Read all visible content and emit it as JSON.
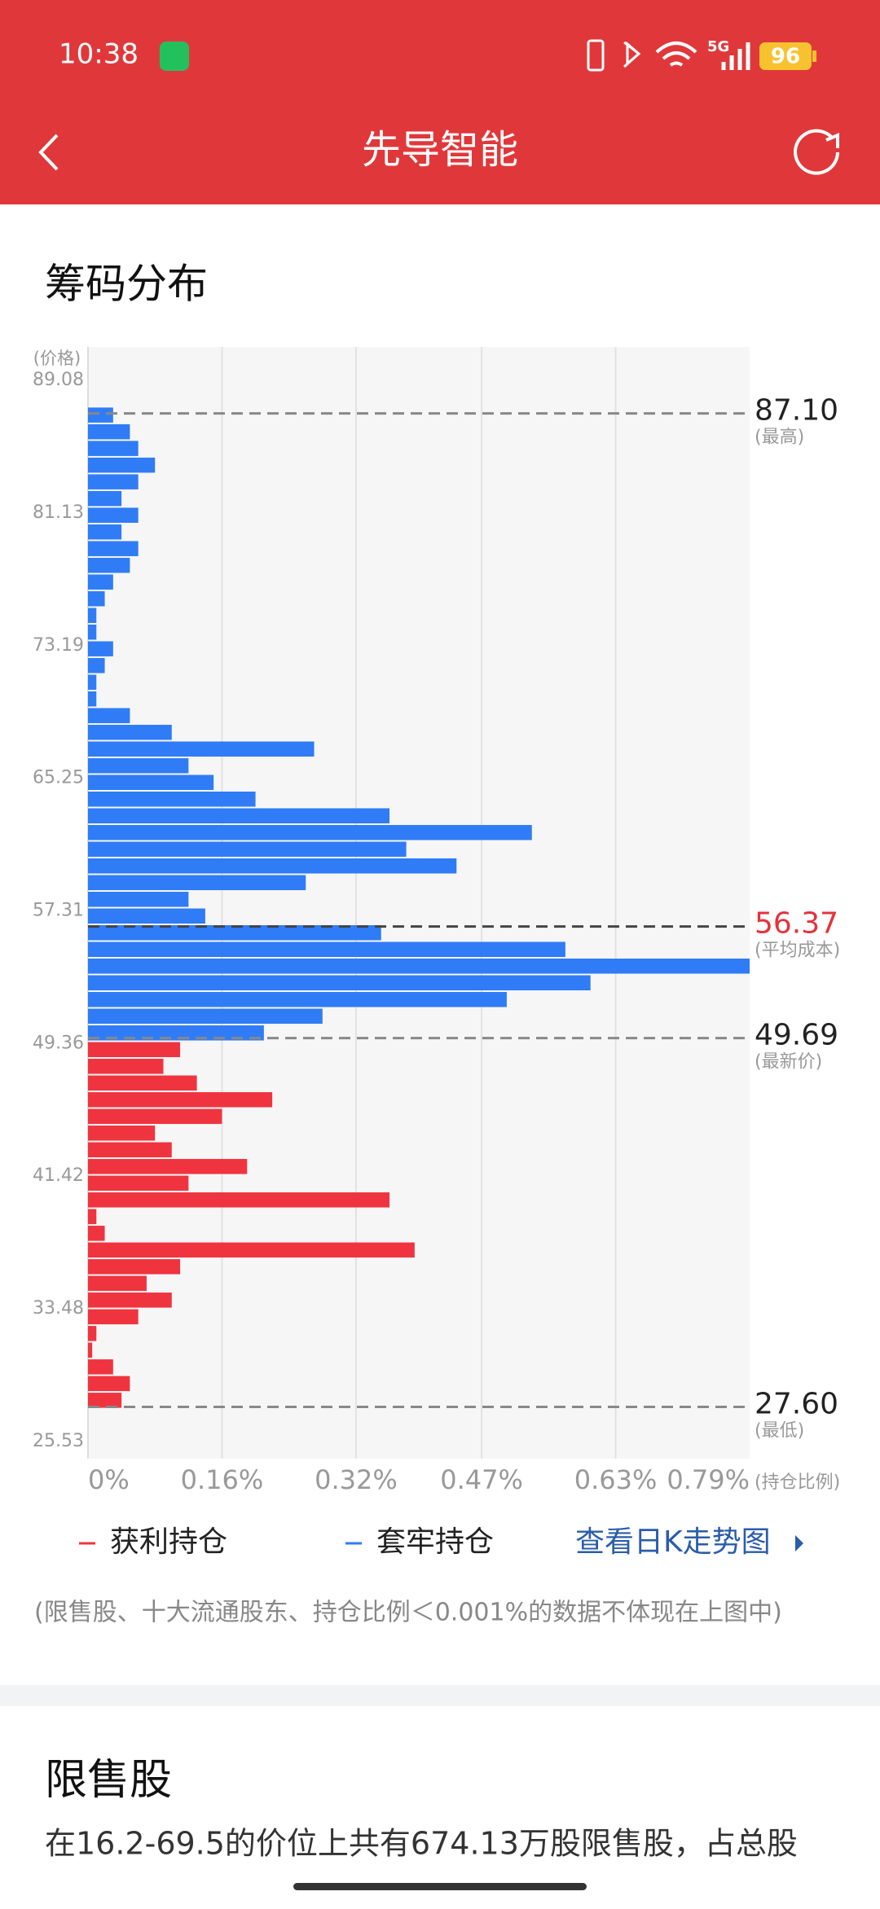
{
  "status_bar": {
    "time": "10:38",
    "network": "5G",
    "battery": "96"
  },
  "header": {
    "title": "先导智能"
  },
  "section_title": "筹码分布",
  "chart_data": {
    "type": "bar",
    "orientation": "horizontal",
    "y_label": "(价格)",
    "x_label": "(持仓比例)",
    "y": [
      28,
      29,
      30,
      31,
      32,
      33,
      34,
      35,
      36,
      37,
      38,
      39,
      40,
      41,
      42,
      43,
      44,
      45,
      46,
      47,
      48,
      49,
      50,
      51,
      52,
      53,
      54,
      55,
      56,
      57,
      58,
      59,
      60,
      61,
      62,
      63,
      64,
      65,
      66,
      67,
      68,
      69,
      70,
      71,
      72,
      73,
      74,
      75,
      76,
      77,
      78,
      79,
      80,
      81,
      82,
      83,
      84,
      85,
      86,
      87
    ],
    "series": [
      {
        "name": "获利持仓",
        "color": "#f0343f",
        "values": [
          0.04,
          0.05,
          0.03,
          0.005,
          0.01,
          0.06,
          0.1,
          0.07,
          0.11,
          0.39,
          0.02,
          0.01,
          0.36,
          0.12,
          0.19,
          0.1,
          0.08,
          0.16,
          0.22,
          0.13,
          0.09,
          0.11,
          null,
          null,
          null,
          null,
          null,
          null,
          null,
          null,
          null,
          null,
          null,
          null,
          null,
          null,
          null,
          null,
          null,
          null,
          null,
          null,
          null,
          null,
          null,
          null,
          null,
          null,
          null,
          null,
          null,
          null,
          null,
          null,
          null,
          null,
          null,
          null,
          null,
          null
        ]
      },
      {
        "name": "套牢持仓",
        "color": "#2f7cf6",
        "values": [
          null,
          null,
          null,
          null,
          null,
          null,
          null,
          null,
          null,
          null,
          null,
          null,
          null,
          null,
          null,
          null,
          null,
          null,
          null,
          null,
          null,
          null,
          0.21,
          0.28,
          0.5,
          0.6,
          0.79,
          0.57,
          0.35,
          0.14,
          0.12,
          0.26,
          0.44,
          0.38,
          0.53,
          0.36,
          0.2,
          0.15,
          0.12,
          0.27,
          0.1,
          0.05,
          0.01,
          0.01,
          0.02,
          0.03,
          0.01,
          0.01,
          0.02,
          0.03,
          0.05,
          0.06,
          0.04,
          0.06,
          0.04,
          0.06,
          0.08,
          0.06,
          0.05,
          0.03
        ]
      }
    ],
    "ylim": [
      25.53,
      89.08
    ],
    "yticks": [
      89.08,
      81.13,
      73.19,
      65.25,
      57.31,
      49.36,
      41.42,
      33.48,
      25.53
    ],
    "xlim": [
      0,
      0.79
    ],
    "xticks": [
      {
        "value": 0,
        "label": "0%"
      },
      {
        "value": 0.16,
        "label": "0.16%"
      },
      {
        "value": 0.32,
        "label": "0.32%"
      },
      {
        "value": 0.47,
        "label": "0.47%"
      },
      {
        "value": 0.63,
        "label": "0.63%"
      },
      {
        "value": 0.79,
        "label": "0.79%"
      }
    ],
    "grid": true,
    "reference_lines": [
      {
        "value": 87.1,
        "label": "87.10",
        "note": "(最高)",
        "color": "#222222"
      },
      {
        "value": 56.37,
        "label": "56.37",
        "note": "(平均成本)",
        "color": "#e5323b"
      },
      {
        "value": 49.69,
        "label": "49.69",
        "note": "(最新价)",
        "color": "#222222"
      },
      {
        "value": 27.6,
        "label": "27.60",
        "note": "(最低)",
        "color": "#222222"
      }
    ]
  },
  "link": "查看日K走势图",
  "footnote": "(限售股、十大流通股东、持仓比例＜0.001%的数据不体现在上图中)",
  "restricted": {
    "title": "限售股",
    "text": "在16.2-69.5的价位上共有674.13万股限售股，占总股"
  }
}
